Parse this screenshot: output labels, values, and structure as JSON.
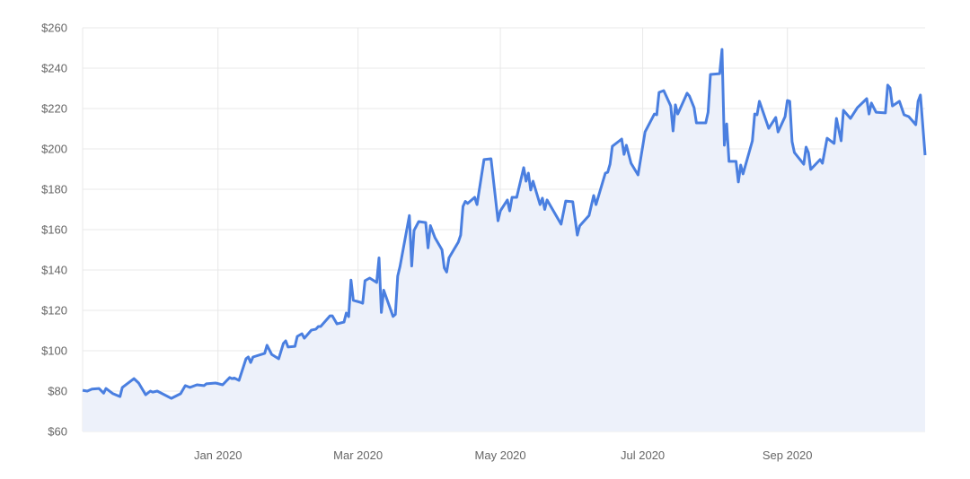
{
  "chart_data": {
    "type": "area",
    "title": "",
    "xlabel": "",
    "ylabel": "",
    "xlim": [
      "2019-11-04",
      "2020-10-30"
    ],
    "ylim": [
      60,
      260
    ],
    "grid": true,
    "colors": {
      "line": "#4a7fe0",
      "fill": "#edf1fa",
      "grid": "#e8e8e8",
      "tick_text": "#666666"
    },
    "y_ticks": [
      {
        "value": 60,
        "label": "$60"
      },
      {
        "value": 80,
        "label": "$80"
      },
      {
        "value": 100,
        "label": "$100"
      },
      {
        "value": 120,
        "label": "$120"
      },
      {
        "value": 140,
        "label": "$140"
      },
      {
        "value": 160,
        "label": "$160"
      },
      {
        "value": 180,
        "label": "$180"
      },
      {
        "value": 200,
        "label": "$200"
      },
      {
        "value": 220,
        "label": "$220"
      },
      {
        "value": 240,
        "label": "$240"
      },
      {
        "value": 260,
        "label": "$260"
      }
    ],
    "x_ticks": [
      {
        "value": "2020-01-01",
        "label": "Jan 2020"
      },
      {
        "value": "2020-03-01",
        "label": "Mar 2020"
      },
      {
        "value": "2020-05-01",
        "label": "May 2020"
      },
      {
        "value": "2020-07-01",
        "label": "Jul 2020"
      },
      {
        "value": "2020-09-01",
        "label": "Sep 2020"
      }
    ],
    "series": [
      {
        "points": [
          [
            "2019-11-04",
            80.4
          ],
          [
            "2019-11-06",
            80
          ],
          [
            "2019-11-08",
            81
          ],
          [
            "2019-11-11",
            81.3
          ],
          [
            "2019-11-13",
            79
          ],
          [
            "2019-11-14",
            81.3
          ],
          [
            "2019-11-17",
            78.7
          ],
          [
            "2019-11-20",
            77.3
          ],
          [
            "2019-11-21",
            81.8
          ],
          [
            "2019-11-26",
            86.2
          ],
          [
            "2019-11-28",
            84
          ],
          [
            "2019-12-01",
            78.2
          ],
          [
            "2019-12-03",
            80
          ],
          [
            "2019-12-04",
            79.5
          ],
          [
            "2019-12-06",
            80
          ],
          [
            "2019-12-12",
            76.4
          ],
          [
            "2019-12-16",
            78.7
          ],
          [
            "2019-12-18",
            82.7
          ],
          [
            "2019-12-20",
            81.8
          ],
          [
            "2019-12-23",
            83.1
          ],
          [
            "2019-12-26",
            82.7
          ],
          [
            "2019-12-27",
            83.6
          ],
          [
            "2019-12-31",
            84
          ],
          [
            "2020-01-03",
            83.1
          ],
          [
            "2020-01-06",
            86.7
          ],
          [
            "2020-01-07",
            86.2
          ],
          [
            "2020-01-08",
            86.5
          ],
          [
            "2020-01-10",
            85.3
          ],
          [
            "2020-01-13",
            96
          ],
          [
            "2020-01-14",
            96.9
          ],
          [
            "2020-01-15",
            94.2
          ],
          [
            "2020-01-16",
            96.9
          ],
          [
            "2020-01-21",
            98.7
          ],
          [
            "2020-01-22",
            102.7
          ],
          [
            "2020-01-24",
            98.2
          ],
          [
            "2020-01-27",
            96
          ],
          [
            "2020-01-29",
            103.6
          ],
          [
            "2020-01-30",
            104.9
          ],
          [
            "2020-01-31",
            101.8
          ],
          [
            "2020-02-03",
            102.2
          ],
          [
            "2020-02-04",
            107.1
          ],
          [
            "2020-02-06",
            108.4
          ],
          [
            "2020-02-07",
            106.2
          ],
          [
            "2020-02-10",
            110.2
          ],
          [
            "2020-02-12",
            110.7
          ],
          [
            "2020-02-13",
            112
          ],
          [
            "2020-02-14",
            112
          ],
          [
            "2020-02-18",
            117.3
          ],
          [
            "2020-02-19",
            117.3
          ],
          [
            "2020-02-21",
            113.3
          ],
          [
            "2020-02-24",
            114.2
          ],
          [
            "2020-02-25",
            118.7
          ],
          [
            "2020-02-26",
            116.9
          ],
          [
            "2020-02-27",
            135
          ],
          [
            "2020-02-28",
            125
          ],
          [
            "2020-03-02",
            124
          ],
          [
            "2020-03-03",
            123.5
          ],
          [
            "2020-03-04",
            134.7
          ],
          [
            "2020-03-06",
            136
          ],
          [
            "2020-03-09",
            133.8
          ],
          [
            "2020-03-10",
            146
          ],
          [
            "2020-03-11",
            119
          ],
          [
            "2020-03-12",
            130
          ],
          [
            "2020-03-16",
            117
          ],
          [
            "2020-03-17",
            118
          ],
          [
            "2020-03-18",
            137
          ],
          [
            "2020-03-19",
            141.8
          ],
          [
            "2020-03-23",
            167
          ],
          [
            "2020-03-24",
            142
          ],
          [
            "2020-03-25",
            159.6
          ],
          [
            "2020-03-27",
            164
          ],
          [
            "2020-03-30",
            163.5
          ],
          [
            "2020-03-31",
            151
          ],
          [
            "2020-04-01",
            162
          ],
          [
            "2020-04-03",
            156
          ],
          [
            "2020-04-06",
            150
          ],
          [
            "2020-04-07",
            141
          ],
          [
            "2020-04-08",
            139
          ],
          [
            "2020-04-09",
            146
          ],
          [
            "2020-04-13",
            153.8
          ],
          [
            "2020-04-14",
            157.3
          ],
          [
            "2020-04-15",
            171.5
          ],
          [
            "2020-04-16",
            174
          ],
          [
            "2020-04-17",
            173
          ],
          [
            "2020-04-20",
            176
          ],
          [
            "2020-04-21",
            172.4
          ],
          [
            "2020-04-24",
            194.7
          ],
          [
            "2020-04-27",
            195.1
          ],
          [
            "2020-04-30",
            164.4
          ],
          [
            "2020-05-01",
            169.3
          ],
          [
            "2020-05-04",
            174.7
          ],
          [
            "2020-05-05",
            169.3
          ],
          [
            "2020-05-06",
            176
          ],
          [
            "2020-05-08",
            176
          ],
          [
            "2020-05-11",
            190.7
          ],
          [
            "2020-05-12",
            184
          ],
          [
            "2020-05-13",
            188
          ],
          [
            "2020-05-14",
            179.6
          ],
          [
            "2020-05-15",
            184
          ],
          [
            "2020-05-18",
            172.4
          ],
          [
            "2020-05-19",
            175.6
          ],
          [
            "2020-05-20",
            170
          ],
          [
            "2020-05-21",
            174.7
          ],
          [
            "2020-05-27",
            162.7
          ],
          [
            "2020-05-29",
            174.2
          ],
          [
            "2020-06-01",
            173.8
          ],
          [
            "2020-06-03",
            157.3
          ],
          [
            "2020-06-04",
            161.8
          ],
          [
            "2020-06-08",
            167
          ],
          [
            "2020-06-10",
            176.9
          ],
          [
            "2020-06-11",
            172.4
          ],
          [
            "2020-06-15",
            188
          ],
          [
            "2020-06-16",
            188.4
          ],
          [
            "2020-06-17",
            192.4
          ],
          [
            "2020-06-18",
            201.3
          ],
          [
            "2020-06-22",
            204.9
          ],
          [
            "2020-06-23",
            197.3
          ],
          [
            "2020-06-24",
            201.8
          ],
          [
            "2020-06-26",
            192.9
          ],
          [
            "2020-06-29",
            187.1
          ],
          [
            "2020-07-02",
            208.4
          ],
          [
            "2020-07-06",
            217.3
          ],
          [
            "2020-07-07",
            216.9
          ],
          [
            "2020-07-08",
            228
          ],
          [
            "2020-07-10",
            228.9
          ],
          [
            "2020-07-13",
            221.3
          ],
          [
            "2020-07-14",
            208.9
          ],
          [
            "2020-07-15",
            221.8
          ],
          [
            "2020-07-16",
            217.3
          ],
          [
            "2020-07-20",
            227.6
          ],
          [
            "2020-07-21",
            226.2
          ],
          [
            "2020-07-23",
            220.4
          ],
          [
            "2020-07-24",
            212.9
          ],
          [
            "2020-07-28",
            212.9
          ],
          [
            "2020-07-29",
            218.2
          ],
          [
            "2020-07-30",
            236.9
          ],
          [
            "2020-08-03",
            237.3
          ],
          [
            "2020-08-04",
            249.3
          ],
          [
            "2020-08-05",
            201.8
          ],
          [
            "2020-08-06",
            212.4
          ],
          [
            "2020-08-07",
            193.8
          ],
          [
            "2020-08-10",
            193.8
          ],
          [
            "2020-08-11",
            183.6
          ],
          [
            "2020-08-12",
            192
          ],
          [
            "2020-08-13",
            187.6
          ],
          [
            "2020-08-17",
            204
          ],
          [
            "2020-08-18",
            217.3
          ],
          [
            "2020-08-19",
            216.9
          ],
          [
            "2020-08-20",
            223.6
          ],
          [
            "2020-08-24",
            210.2
          ],
          [
            "2020-08-27",
            215.6
          ],
          [
            "2020-08-28",
            208.4
          ],
          [
            "2020-08-31",
            216
          ],
          [
            "2020-09-01",
            224
          ],
          [
            "2020-09-02",
            223.6
          ],
          [
            "2020-09-03",
            203.6
          ],
          [
            "2020-09-04",
            198.2
          ],
          [
            "2020-09-08",
            192.4
          ],
          [
            "2020-09-09",
            200.9
          ],
          [
            "2020-09-10",
            198.2
          ],
          [
            "2020-09-11",
            189.8
          ],
          [
            "2020-09-15",
            194.7
          ],
          [
            "2020-09-16",
            192.9
          ],
          [
            "2020-09-18",
            205.3
          ],
          [
            "2020-09-21",
            202.7
          ],
          [
            "2020-09-22",
            215.1
          ],
          [
            "2020-09-24",
            204
          ],
          [
            "2020-09-25",
            219.1
          ],
          [
            "2020-09-28",
            215.1
          ],
          [
            "2020-10-01",
            220.4
          ],
          [
            "2020-10-05",
            224.9
          ],
          [
            "2020-10-06",
            217.3
          ],
          [
            "2020-10-07",
            222.7
          ],
          [
            "2020-10-09",
            218.2
          ],
          [
            "2020-10-13",
            217.8
          ],
          [
            "2020-10-14",
            231.6
          ],
          [
            "2020-10-15",
            230.2
          ],
          [
            "2020-10-16",
            221.3
          ],
          [
            "2020-10-19",
            223.6
          ],
          [
            "2020-10-21",
            216.9
          ],
          [
            "2020-10-23",
            216
          ],
          [
            "2020-10-26",
            212
          ],
          [
            "2020-10-27",
            223.6
          ],
          [
            "2020-10-28",
            226.7
          ],
          [
            "2020-10-30",
            196.9
          ]
        ]
      }
    ]
  }
}
